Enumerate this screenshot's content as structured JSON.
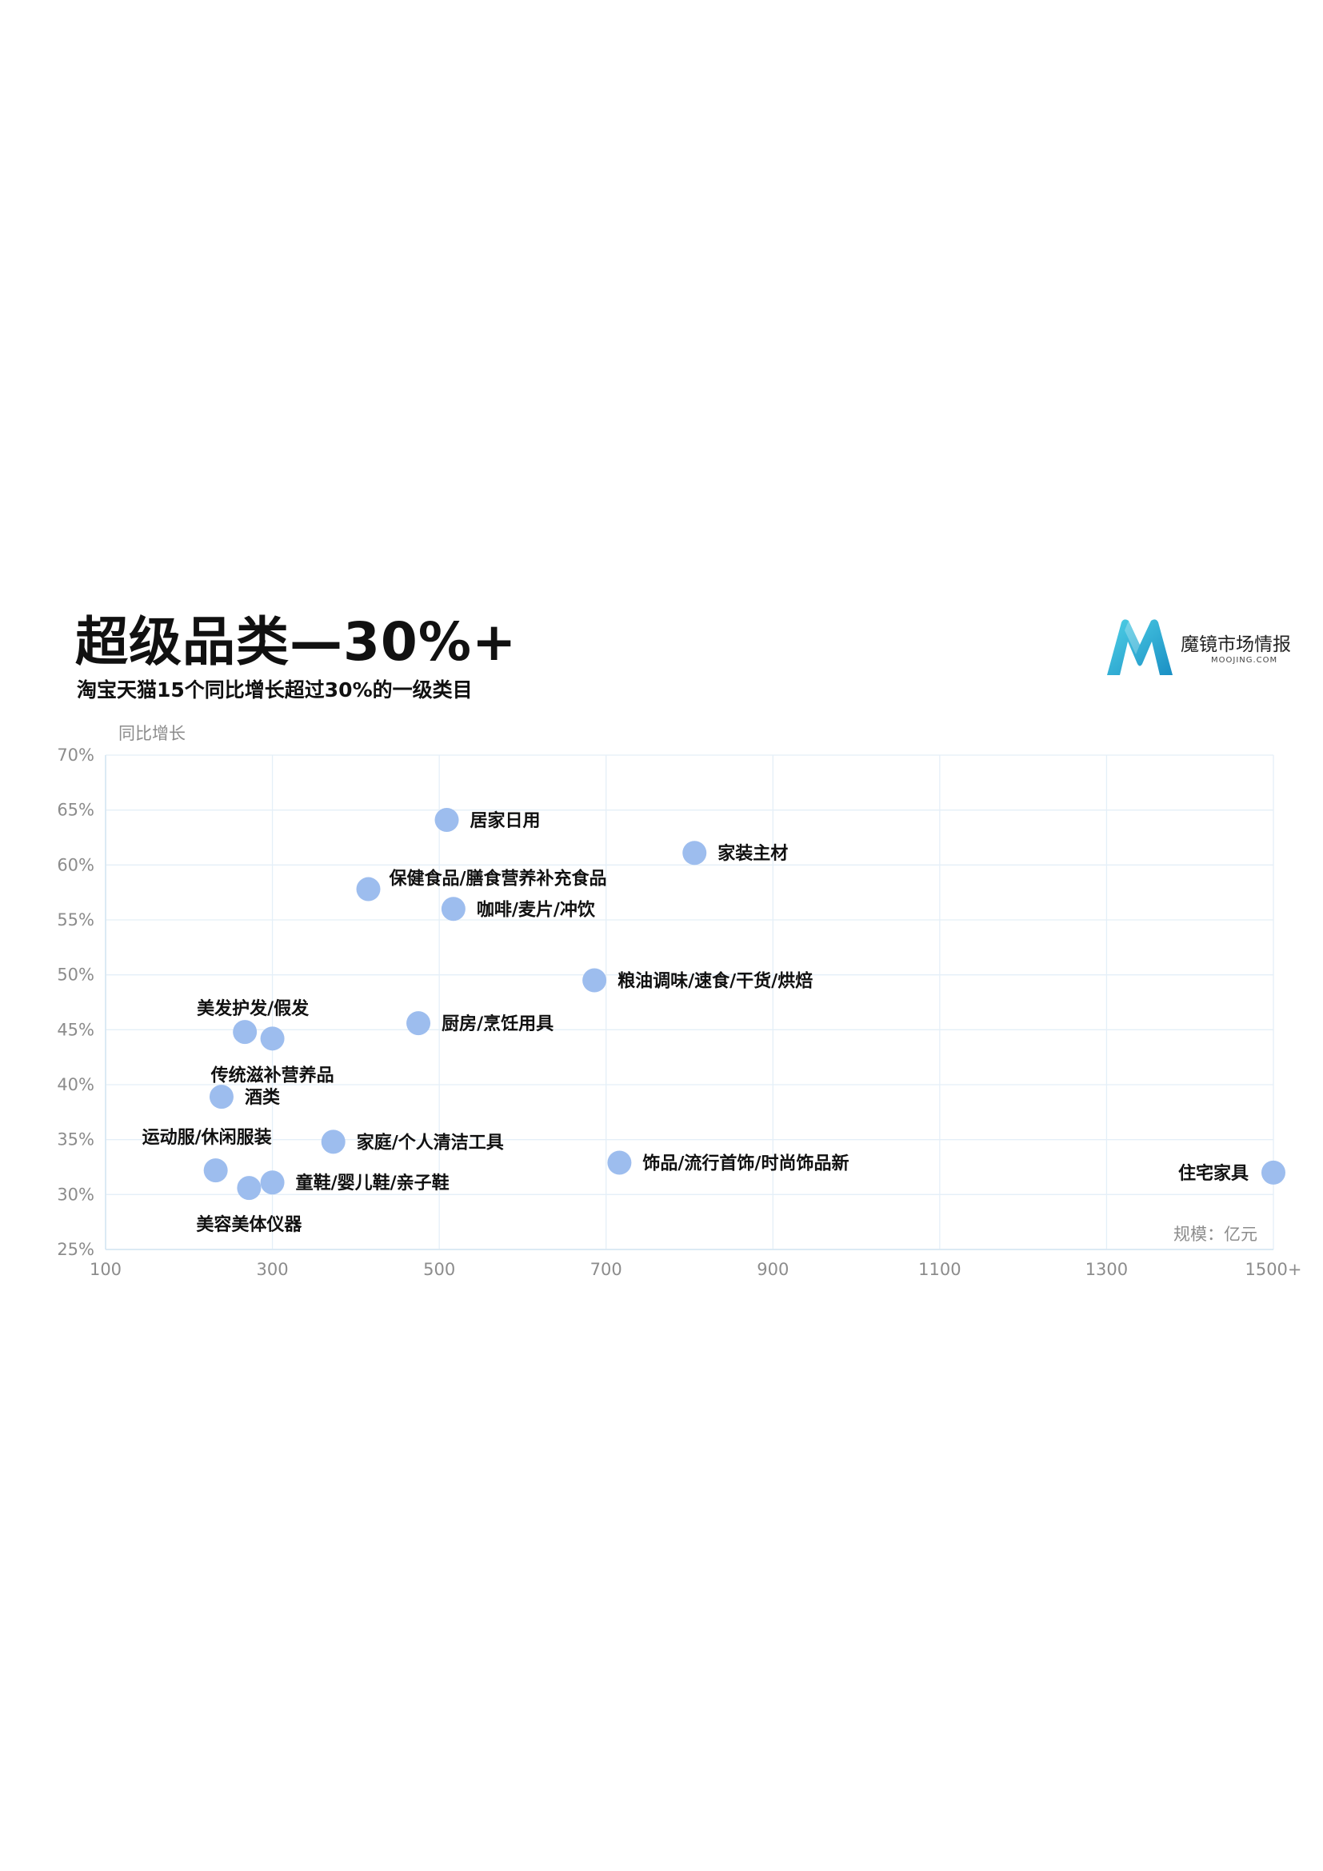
{
  "header": {
    "title": "超级品类—30%+",
    "subtitle": "淘宝天猫15个同比增长超过30%的一级类目"
  },
  "logo": {
    "name": "魔镜市场情报",
    "domain": "MOOJING.COM"
  },
  "colors": {
    "point": "#9dbdee",
    "grid": "#e4eff8",
    "axis": "#d8e8f3",
    "text": "#111111",
    "muted": "#8c8c8c",
    "logo_light": "#4fd0e6",
    "logo_dark": "#1a8fc4"
  },
  "chart_data": {
    "type": "scatter",
    "ylabel": "同比增长",
    "xlabel": "规模：亿元",
    "xlim": [
      100,
      1500
    ],
    "ylim": [
      25,
      70
    ],
    "x_ticks": [
      {
        "value": 100,
        "label": "100"
      },
      {
        "value": 300,
        "label": "300"
      },
      {
        "value": 500,
        "label": "500"
      },
      {
        "value": 700,
        "label": "700"
      },
      {
        "value": 900,
        "label": "900"
      },
      {
        "value": 1100,
        "label": "1100"
      },
      {
        "value": 1300,
        "label": "1300"
      },
      {
        "value": 1500,
        "label": "1500+"
      }
    ],
    "y_ticks": [
      {
        "value": 25,
        "label": "25%"
      },
      {
        "value": 30,
        "label": "30%"
      },
      {
        "value": 35,
        "label": "35%"
      },
      {
        "value": 40,
        "label": "40%"
      },
      {
        "value": 45,
        "label": "45%"
      },
      {
        "value": 50,
        "label": "50%"
      },
      {
        "value": 55,
        "label": "55%"
      },
      {
        "value": 60,
        "label": "60%"
      },
      {
        "value": 65,
        "label": "65%"
      },
      {
        "value": 70,
        "label": "70%"
      }
    ],
    "grid": true,
    "points": [
      {
        "label": "居家日用",
        "x": 509,
        "y": 64.1,
        "label_pos": "right"
      },
      {
        "label": "家装主材",
        "x": 806,
        "y": 61.1,
        "label_pos": "right"
      },
      {
        "label": "保健食品/膳食营养补充食品",
        "x": 415,
        "y": 57.8,
        "label_pos": "above-right"
      },
      {
        "label": "咖啡/麦片/冲饮",
        "x": 517,
        "y": 56.0,
        "label_pos": "right"
      },
      {
        "label": "粮油调味/速食/干货/烘焙",
        "x": 686,
        "y": 49.5,
        "label_pos": "right"
      },
      {
        "label": "厨房/烹饪用具",
        "x": 475,
        "y": 45.6,
        "label_pos": "right"
      },
      {
        "label": "美发护发/假发",
        "x": 267,
        "y": 44.8,
        "label_pos": "above"
      },
      {
        "label": "传统滋补营养品",
        "x": 300,
        "y": 44.2,
        "label_pos": "below"
      },
      {
        "label": "酒类",
        "x": 239,
        "y": 38.9,
        "label_pos": "right"
      },
      {
        "label": "家庭/个人清洁工具",
        "x": 373,
        "y": 34.8,
        "label_pos": "right"
      },
      {
        "label": "运动服/休闲服装",
        "x": 232,
        "y": 32.2,
        "label_pos": "above-left"
      },
      {
        "label": "饰品/流行首饰/时尚饰品新",
        "x": 716,
        "y": 32.9,
        "label_pos": "right"
      },
      {
        "label": "童鞋/婴儿鞋/亲子鞋",
        "x": 300,
        "y": 31.1,
        "label_pos": "right"
      },
      {
        "label": "美容美体仪器",
        "x": 272,
        "y": 30.6,
        "label_pos": "below"
      },
      {
        "label": "住宅家具",
        "x": 1500,
        "y": 32.0,
        "label_pos": "left"
      }
    ]
  }
}
